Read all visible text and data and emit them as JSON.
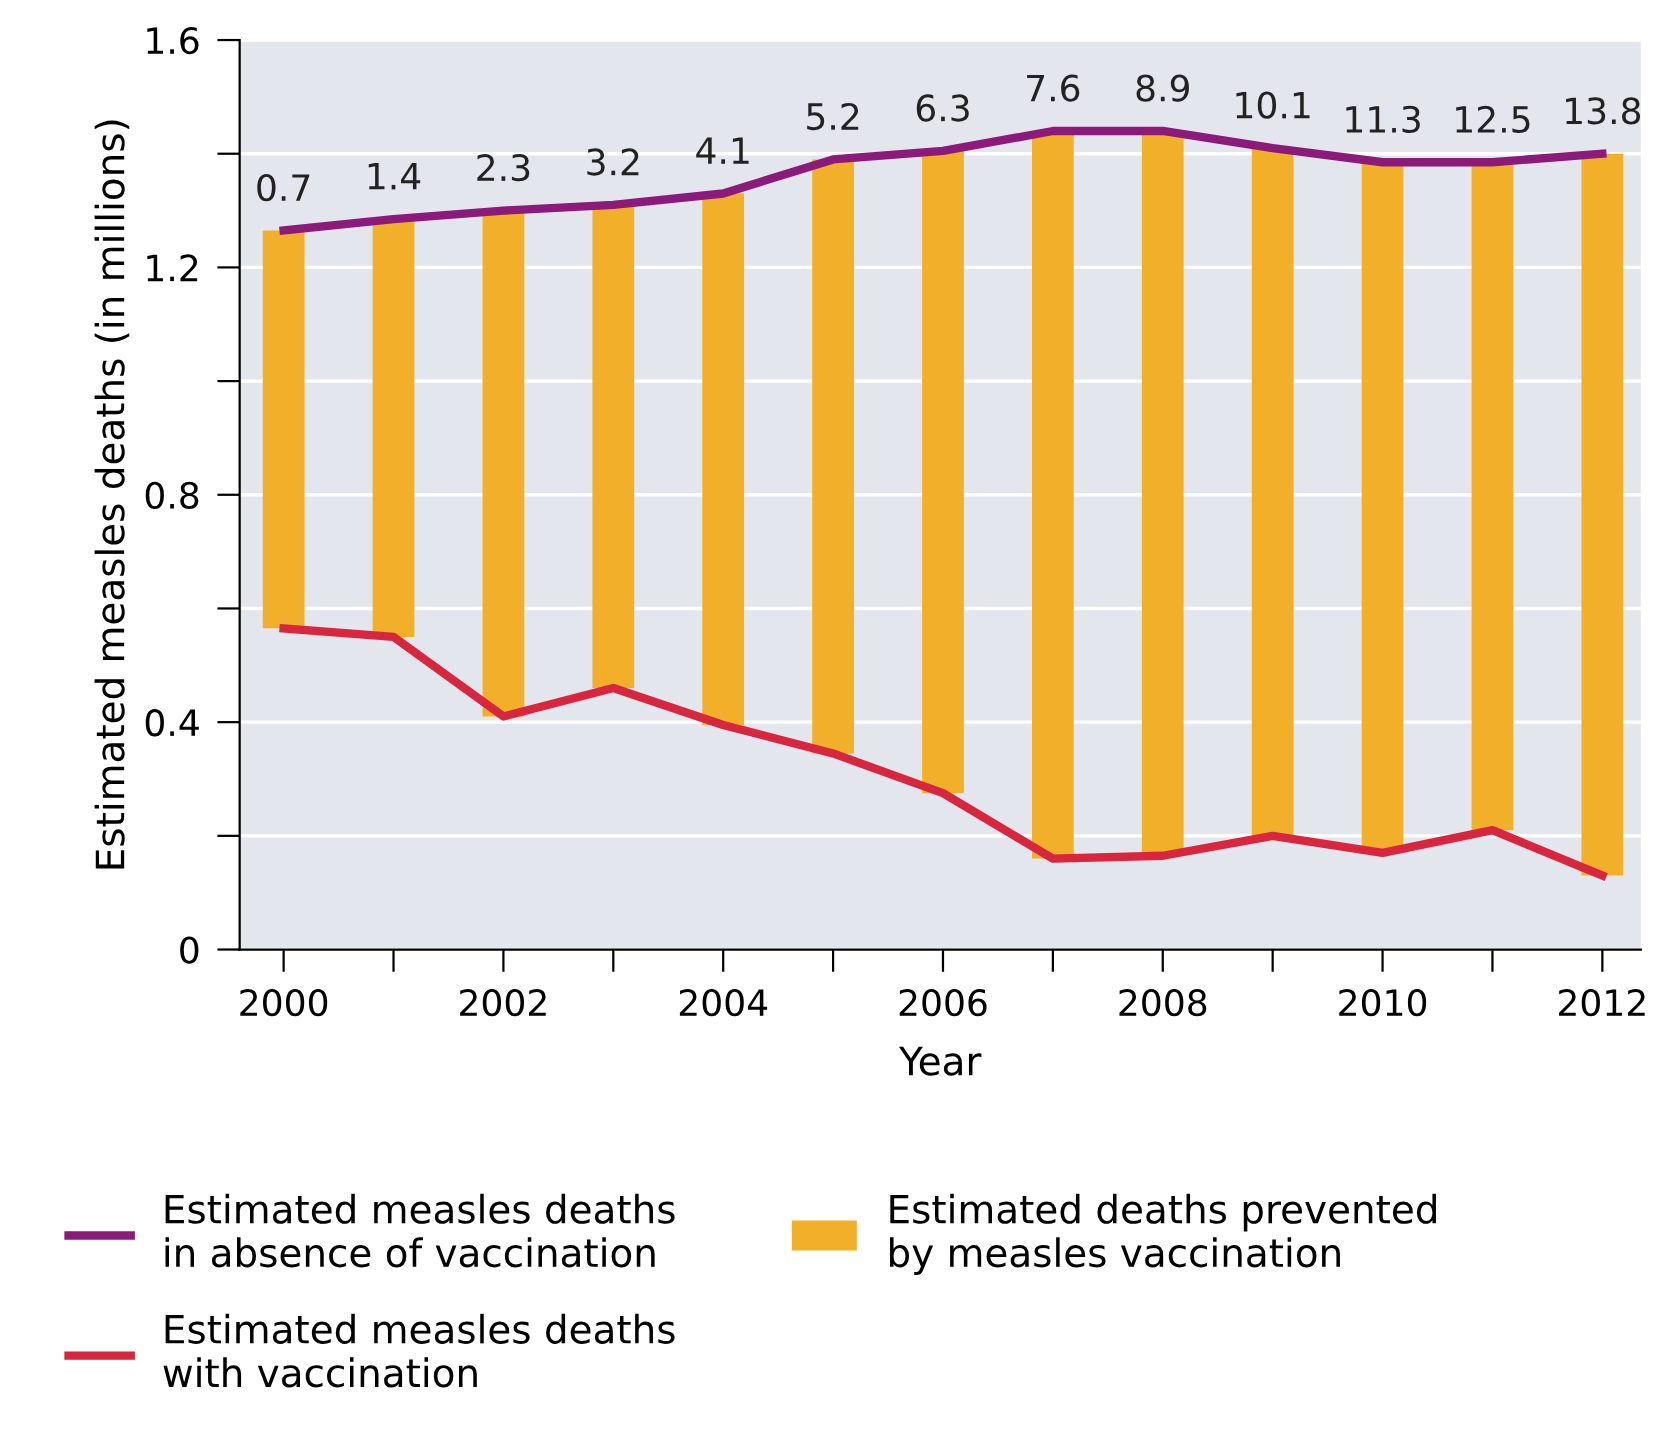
{
  "chart_data": {
    "type": "line",
    "xlabel": "Year",
    "ylabel": "Estimated measles deaths (in millions)",
    "x": [
      2000,
      2001,
      2002,
      2003,
      2004,
      2005,
      2006,
      2007,
      2008,
      2009,
      2010,
      2011,
      2012
    ],
    "series": [
      {
        "type": "bar",
        "name": "Estimated deaths prevented by measles vaccination",
        "color": "#f2b02a",
        "base": [
          0.565,
          0.55,
          0.41,
          0.46,
          0.395,
          0.345,
          0.275,
          0.16,
          0.165,
          0.2,
          0.17,
          0.21,
          0.13
        ],
        "values": [
          0.7,
          0.735,
          0.89,
          0.85,
          0.935,
          1.045,
          1.13,
          1.28,
          1.275,
          1.21,
          1.215,
          1.175,
          1.27
        ]
      },
      {
        "name": "Estimated measles deaths in absence of vaccination",
        "color": "#8b1a7a",
        "values": [
          1.265,
          1.285,
          1.3,
          1.31,
          1.33,
          1.39,
          1.405,
          1.44,
          1.44,
          1.41,
          1.385,
          1.385,
          1.4
        ]
      },
      {
        "name": "Estimated measles deaths with vaccination",
        "color": "#d7263d",
        "values": [
          0.565,
          0.55,
          0.41,
          0.46,
          0.395,
          0.345,
          0.275,
          0.16,
          0.165,
          0.2,
          0.17,
          0.21,
          0.13
        ]
      }
    ],
    "annotations": [
      {
        "text": "0.7",
        "x": 2000,
        "y": 1.265
      },
      {
        "text": "1.4",
        "x": 2001,
        "y": 1.285
      },
      {
        "text": "2.3",
        "x": 2002,
        "y": 1.3
      },
      {
        "text": "3.2",
        "x": 2003,
        "y": 1.31
      },
      {
        "text": "4.1",
        "x": 2004,
        "y": 1.33
      },
      {
        "text": "5.2",
        "x": 2005,
        "y": 1.39
      },
      {
        "text": "6.3",
        "x": 2006,
        "y": 1.405
      },
      {
        "text": "7.6",
        "x": 2007,
        "y": 1.44
      },
      {
        "text": "8.9",
        "x": 2008,
        "y": 1.44
      },
      {
        "text": "10.1",
        "x": 2009,
        "y": 1.41
      },
      {
        "text": "11.3",
        "x": 2010,
        "y": 1.385
      },
      {
        "text": "12.5",
        "x": 2011,
        "y": 1.385
      },
      {
        "text": "13.8",
        "x": 2012,
        "y": 1.4
      }
    ],
    "xlim": [
      1999.6,
      2012.35
    ],
    "xticks": [
      2000,
      {
        "value": 2001,
        "label": null
      },
      2002,
      {
        "value": 2003,
        "label": null
      },
      2004,
      {
        "value": 2005,
        "label": null
      },
      2006,
      {
        "value": 2007,
        "label": null
      },
      2008,
      {
        "value": 2009,
        "label": null
      },
      2010,
      {
        "value": 2011,
        "label": null
      },
      2012
    ],
    "ylim": [
      0,
      1.6
    ],
    "yticks": [
      0,
      {
        "value": 0.2,
        "label": null
      },
      0.4,
      {
        "value": 0.6,
        "label": null
      },
      0.8,
      {
        "value": 1.0,
        "label": null
      },
      1.2,
      {
        "value": 1.4,
        "label": null
      },
      1.6
    ],
    "grid": "y",
    "legend": "bottom",
    "marker": "none",
    "line_style": "solid"
  }
}
